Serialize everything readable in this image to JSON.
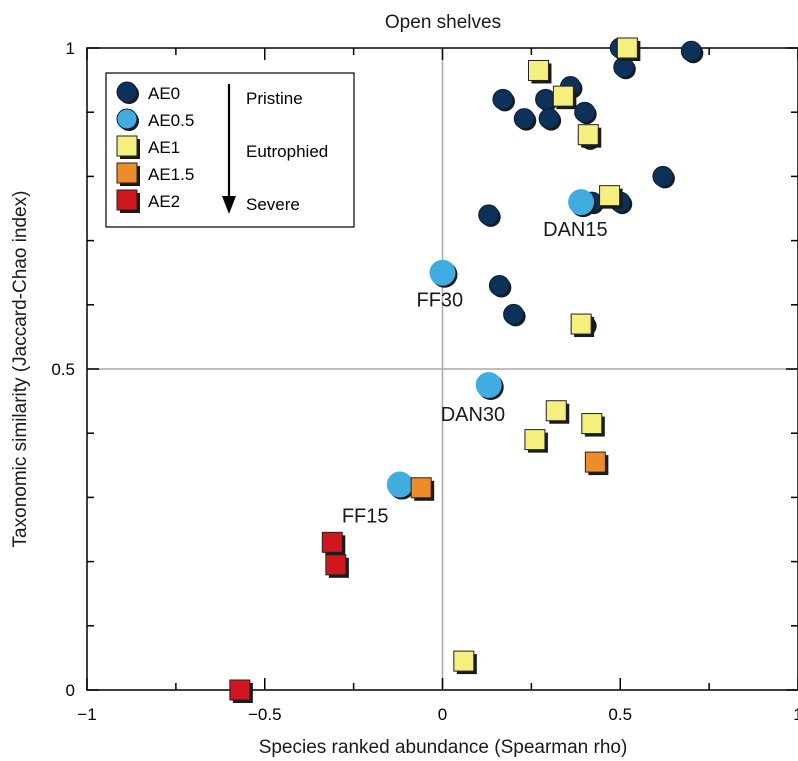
{
  "chart_data": {
    "type": "scatter",
    "title": "Open shelves",
    "xlabel": "Species ranked abundance (Spearman rho)",
    "ylabel": "Taxonomic similarity (Jaccard-Chao index)",
    "xlim": [
      -1,
      1
    ],
    "ylim": [
      0,
      1
    ],
    "x_ticks": [
      -1,
      -0.5,
      0,
      0.5,
      1
    ],
    "x_tick_labels": [
      "−1",
      "−0.5",
      "0",
      "0.5",
      "1"
    ],
    "y_ticks": [
      0,
      0.5,
      1
    ],
    "y_tick_labels": [
      "0",
      "0.5",
      "1"
    ],
    "reference_lines": {
      "x": 0,
      "y": 0.5
    },
    "legend_position": "top-left",
    "series": [
      {
        "name": "AE0",
        "marker": "circle",
        "color": "#0d3158",
        "points": [
          {
            "x": 0.5,
            "y": 1.0
          },
          {
            "x": 0.7,
            "y": 0.995
          },
          {
            "x": 0.51,
            "y": 0.97
          },
          {
            "x": 0.36,
            "y": 0.94
          },
          {
            "x": 0.17,
            "y": 0.92
          },
          {
            "x": 0.29,
            "y": 0.92
          },
          {
            "x": 0.4,
            "y": 0.9
          },
          {
            "x": 0.23,
            "y": 0.89
          },
          {
            "x": 0.3,
            "y": 0.89
          },
          {
            "x": 0.41,
            "y": 0.86
          },
          {
            "x": 0.62,
            "y": 0.8
          },
          {
            "x": 0.42,
            "y": 0.76
          },
          {
            "x": 0.5,
            "y": 0.76
          },
          {
            "x": 0.13,
            "y": 0.74
          },
          {
            "x": 0.16,
            "y": 0.63
          },
          {
            "x": 0.2,
            "y": 0.585
          },
          {
            "x": 0.4,
            "y": 0.57
          }
        ]
      },
      {
        "name": "AE0.5",
        "marker": "circle",
        "color": "#41acdf",
        "points": [
          {
            "x": 0.39,
            "y": 0.76,
            "label": "DAN15"
          },
          {
            "x": 0.0,
            "y": 0.65,
            "label": "FF30"
          },
          {
            "x": 0.13,
            "y": 0.475,
            "label": "DAN30"
          },
          {
            "x": -0.12,
            "y": 0.32,
            "label": "FF15"
          }
        ]
      },
      {
        "name": "AE1",
        "marker": "square",
        "color": "#f5ef7d",
        "points": [
          {
            "x": 0.52,
            "y": 1.0
          },
          {
            "x": 0.27,
            "y": 0.965
          },
          {
            "x": 0.34,
            "y": 0.925
          },
          {
            "x": 0.41,
            "y": 0.865
          },
          {
            "x": 0.47,
            "y": 0.77
          },
          {
            "x": 0.39,
            "y": 0.57
          },
          {
            "x": 0.32,
            "y": 0.435
          },
          {
            "x": 0.42,
            "y": 0.415
          },
          {
            "x": 0.26,
            "y": 0.39
          },
          {
            "x": 0.06,
            "y": 0.045
          }
        ]
      },
      {
        "name": "AE1.5",
        "marker": "square",
        "color": "#ef8c2a",
        "points": [
          {
            "x": -0.06,
            "y": 0.315
          },
          {
            "x": 0.43,
            "y": 0.355
          }
        ]
      },
      {
        "name": "AE2",
        "marker": "square",
        "color": "#d0161e",
        "points": [
          {
            "x": -0.31,
            "y": 0.23
          },
          {
            "x": -0.3,
            "y": 0.195
          },
          {
            "x": -0.57,
            "y": 0.0
          }
        ]
      }
    ],
    "legend_scale": {
      "labels": [
        "Pristine",
        "Eutrophied",
        "Severe"
      ],
      "arrow": "down"
    }
  }
}
